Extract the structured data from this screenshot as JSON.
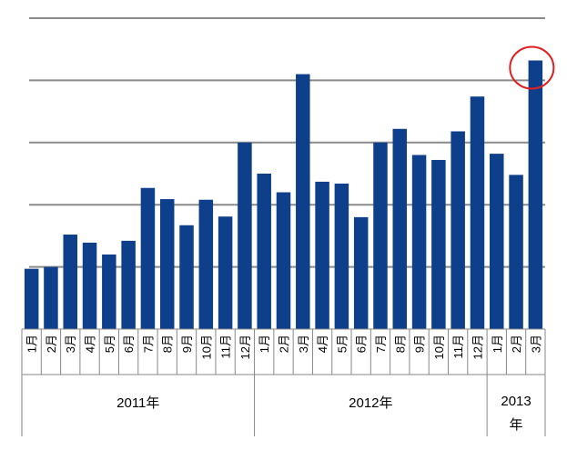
{
  "chart_data": {
    "type": "bar",
    "title": "",
    "xlabel": "",
    "ylabel": "",
    "ylim": [
      0,
      5
    ],
    "grid": true,
    "bar_color": "#0d3f8a",
    "highlight_color": "#e02020",
    "highlight_index": 26,
    "months": [
      "1月",
      "2月",
      "3月",
      "4月",
      "5月",
      "6月",
      "7月",
      "8月",
      "9月",
      "10月",
      "11月",
      "12月",
      "1月",
      "2月",
      "3月",
      "4月",
      "5月",
      "6月",
      "7月",
      "8月",
      "9月",
      "10月",
      "11月",
      "12月",
      "1月",
      "2月",
      "3月"
    ],
    "values": [
      0.97,
      1.0,
      1.52,
      1.39,
      1.2,
      1.42,
      2.27,
      2.09,
      1.67,
      2.08,
      1.81,
      3.0,
      2.5,
      2.2,
      4.1,
      2.37,
      2.34,
      1.8,
      3.0,
      3.22,
      2.8,
      2.72,
      3.18,
      3.74,
      2.82,
      2.48,
      4.32
    ],
    "years": [
      {
        "label": "2011年",
        "start": 0,
        "count": 12
      },
      {
        "label": "2012年",
        "start": 12,
        "count": 12
      },
      {
        "label": "2013年",
        "start": 24,
        "count": 3
      }
    ]
  }
}
